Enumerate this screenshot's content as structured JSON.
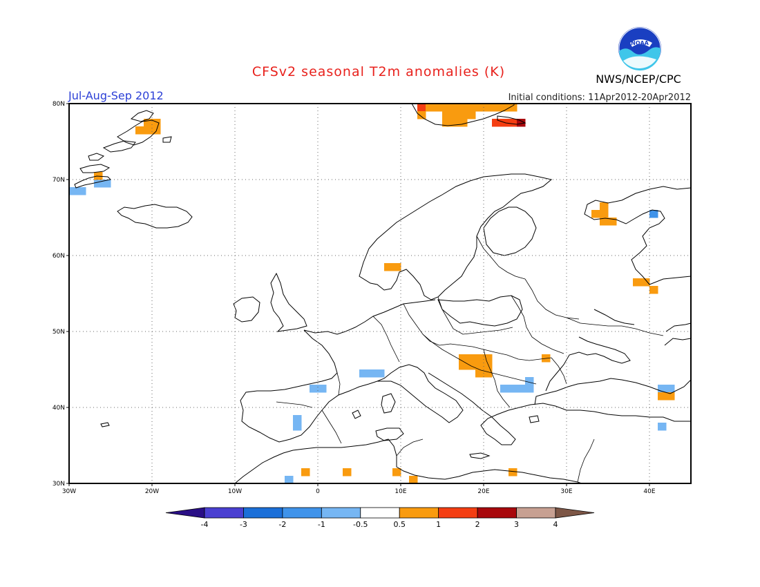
{
  "header": {
    "title": "CFSv2 seasonal T2m anomalies (K)",
    "period": "Jul-Aug-Sep 2012",
    "initial_conditions": "Initial conditions: 11Apr2012-20Apr2012",
    "agency": "NWS/NCEP/CPC",
    "logo_text": "NOAA"
  },
  "map": {
    "lon_range": [
      -30,
      45
    ],
    "lat_range": [
      30,
      80
    ],
    "lon_ticks": [
      {
        "value": -30,
        "label": "30W"
      },
      {
        "value": -20,
        "label": "20W"
      },
      {
        "value": -10,
        "label": "10W"
      },
      {
        "value": 0,
        "label": "0"
      },
      {
        "value": 10,
        "label": "10E"
      },
      {
        "value": 20,
        "label": "20E"
      },
      {
        "value": 30,
        "label": "30E"
      },
      {
        "value": 40,
        "label": "40E"
      }
    ],
    "lat_ticks": [
      {
        "value": 30,
        "label": "30N"
      },
      {
        "value": 40,
        "label": "40N"
      },
      {
        "value": 50,
        "label": "50N"
      },
      {
        "value": 60,
        "label": "60N"
      },
      {
        "value": 70,
        "label": "70N"
      },
      {
        "value": 80,
        "label": "80N"
      }
    ],
    "gridlines": true,
    "cell_size_deg": [
      1,
      1
    ]
  },
  "colorbar": {
    "levels": [
      "-4",
      "-3",
      "-2",
      "-1",
      "-0.5",
      "0.5",
      "1",
      "2",
      "3",
      "4"
    ],
    "colors": [
      "#2a0f86",
      "#4a3fd1",
      "#1b6fd8",
      "#3f93ea",
      "#76b6f3",
      "#ffffff",
      "#f99b0f",
      "#f43e12",
      "#a8080c",
      "#c7a092",
      "#7d5646"
    ],
    "extended_both_ends": true
  },
  "anomaly_cells": [
    {
      "lon": -29.5,
      "lat": 68.5,
      "class": "#76b6f3"
    },
    {
      "lon": -28.5,
      "lat": 68.5,
      "class": "#76b6f3"
    },
    {
      "lon": -26.5,
      "lat": 69.5,
      "class": "#76b6f3"
    },
    {
      "lon": -25.5,
      "lat": 69.5,
      "class": "#76b6f3"
    },
    {
      "lon": -26.5,
      "lat": 70.5,
      "class": "#f99b0f"
    },
    {
      "lon": -21.5,
      "lat": 76.5,
      "class": "#f99b0f"
    },
    {
      "lon": -20.5,
      "lat": 76.5,
      "class": "#f99b0f"
    },
    {
      "lon": -19.5,
      "lat": 76.5,
      "class": "#f99b0f"
    },
    {
      "lon": -20.5,
      "lat": 77.5,
      "class": "#f99b0f"
    },
    {
      "lon": -19.5,
      "lat": 77.5,
      "class": "#f99b0f"
    },
    {
      "lon": 12.5,
      "lat": 79.5,
      "class": "#f43e12"
    },
    {
      "lon": 12.5,
      "lat": 78.5,
      "class": "#f99b0f"
    },
    {
      "lon": 13.5,
      "lat": 79.5,
      "class": "#f99b0f"
    },
    {
      "lon": 14.5,
      "lat": 79.5,
      "class": "#f99b0f"
    },
    {
      "lon": 15.5,
      "lat": 79.5,
      "class": "#f99b0f"
    },
    {
      "lon": 16.5,
      "lat": 79.5,
      "class": "#f99b0f"
    },
    {
      "lon": 17.5,
      "lat": 79.5,
      "class": "#f99b0f"
    },
    {
      "lon": 18.5,
      "lat": 79.5,
      "class": "#f99b0f"
    },
    {
      "lon": 19.5,
      "lat": 79.5,
      "class": "#f99b0f"
    },
    {
      "lon": 15.5,
      "lat": 78.5,
      "class": "#f99b0f"
    },
    {
      "lon": 16.5,
      "lat": 78.5,
      "class": "#f99b0f"
    },
    {
      "lon": 17.5,
      "lat": 78.5,
      "class": "#f99b0f"
    },
    {
      "lon": 18.5,
      "lat": 78.5,
      "class": "#f99b0f"
    },
    {
      "lon": 15.5,
      "lat": 77.5,
      "class": "#f99b0f"
    },
    {
      "lon": 16.5,
      "lat": 77.5,
      "class": "#f99b0f"
    },
    {
      "lon": 17.5,
      "lat": 77.5,
      "class": "#f99b0f"
    },
    {
      "lon": 20.5,
      "lat": 79.5,
      "class": "#f99b0f"
    },
    {
      "lon": 21.5,
      "lat": 79.5,
      "class": "#f99b0f"
    },
    {
      "lon": 22.5,
      "lat": 79.5,
      "class": "#f99b0f"
    },
    {
      "lon": 23.5,
      "lat": 79.5,
      "class": "#f99b0f"
    },
    {
      "lon": 21.5,
      "lat": 77.5,
      "class": "#f43e12"
    },
    {
      "lon": 22.5,
      "lat": 77.5,
      "class": "#f43e12"
    },
    {
      "lon": 23.5,
      "lat": 77.5,
      "class": "#f43e12"
    },
    {
      "lon": 24.5,
      "lat": 77.5,
      "class": "#a8080c"
    },
    {
      "lon": 33.5,
      "lat": 65.5,
      "class": "#f99b0f"
    },
    {
      "lon": 34.5,
      "lat": 65.5,
      "class": "#f99b0f"
    },
    {
      "lon": 34.5,
      "lat": 66.5,
      "class": "#f99b0f"
    },
    {
      "lon": 34.5,
      "lat": 64.5,
      "class": "#f99b0f"
    },
    {
      "lon": 35.5,
      "lat": 64.5,
      "class": "#f99b0f"
    },
    {
      "lon": 40.5,
      "lat": 65.5,
      "class": "#3f93ea"
    },
    {
      "lon": 8.5,
      "lat": 58.5,
      "class": "#f99b0f"
    },
    {
      "lon": 9.5,
      "lat": 58.5,
      "class": "#f99b0f"
    },
    {
      "lon": 38.5,
      "lat": 56.5,
      "class": "#f99b0f"
    },
    {
      "lon": 39.5,
      "lat": 56.5,
      "class": "#f99b0f"
    },
    {
      "lon": 40.5,
      "lat": 55.5,
      "class": "#f99b0f"
    },
    {
      "lon": 17.5,
      "lat": 46.5,
      "class": "#f99b0f"
    },
    {
      "lon": 18.5,
      "lat": 46.5,
      "class": "#f99b0f"
    },
    {
      "lon": 19.5,
      "lat": 46.5,
      "class": "#f99b0f"
    },
    {
      "lon": 20.5,
      "lat": 46.5,
      "class": "#f99b0f"
    },
    {
      "lon": 17.5,
      "lat": 45.5,
      "class": "#f99b0f"
    },
    {
      "lon": 18.5,
      "lat": 45.5,
      "class": "#f99b0f"
    },
    {
      "lon": 19.5,
      "lat": 45.5,
      "class": "#f99b0f"
    },
    {
      "lon": 20.5,
      "lat": 45.5,
      "class": "#f99b0f"
    },
    {
      "lon": 19.5,
      "lat": 44.5,
      "class": "#f99b0f"
    },
    {
      "lon": 20.5,
      "lat": 44.5,
      "class": "#f99b0f"
    },
    {
      "lon": 27.5,
      "lat": 46.5,
      "class": "#f99b0f"
    },
    {
      "lon": 22.5,
      "lat": 42.5,
      "class": "#76b6f3"
    },
    {
      "lon": 23.5,
      "lat": 42.5,
      "class": "#76b6f3"
    },
    {
      "lon": 24.5,
      "lat": 42.5,
      "class": "#76b6f3"
    },
    {
      "lon": 25.5,
      "lat": 42.5,
      "class": "#76b6f3"
    },
    {
      "lon": 25.5,
      "lat": 43.5,
      "class": "#76b6f3"
    },
    {
      "lon": -0.5,
      "lat": 42.5,
      "class": "#76b6f3"
    },
    {
      "lon": 0.5,
      "lat": 42.5,
      "class": "#76b6f3"
    },
    {
      "lon": 5.5,
      "lat": 44.5,
      "class": "#76b6f3"
    },
    {
      "lon": 6.5,
      "lat": 44.5,
      "class": "#76b6f3"
    },
    {
      "lon": 7.5,
      "lat": 44.5,
      "class": "#76b6f3"
    },
    {
      "lon": -2.5,
      "lat": 38.5,
      "class": "#76b6f3"
    },
    {
      "lon": -2.5,
      "lat": 37.5,
      "class": "#76b6f3"
    },
    {
      "lon": 42.5,
      "lat": 42.5,
      "class": "#76b6f3"
    },
    {
      "lon": 41.5,
      "lat": 42.5,
      "class": "#76b6f3"
    },
    {
      "lon": 41.5,
      "lat": 41.5,
      "class": "#f99b0f"
    },
    {
      "lon": 42.5,
      "lat": 41.5,
      "class": "#f99b0f"
    },
    {
      "lon": 41.5,
      "lat": 37.5,
      "class": "#76b6f3"
    },
    {
      "lon": -1.5,
      "lat": 31.5,
      "class": "#f99b0f"
    },
    {
      "lon": 3.5,
      "lat": 31.5,
      "class": "#f99b0f"
    },
    {
      "lon": 9.5,
      "lat": 31.5,
      "class": "#f99b0f"
    },
    {
      "lon": 11.5,
      "lat": 30.5,
      "class": "#f99b0f"
    },
    {
      "lon": 23.5,
      "lat": 31.5,
      "class": "#f99b0f"
    },
    {
      "lon": -3.5,
      "lat": 30.5,
      "class": "#76b6f3"
    }
  ]
}
